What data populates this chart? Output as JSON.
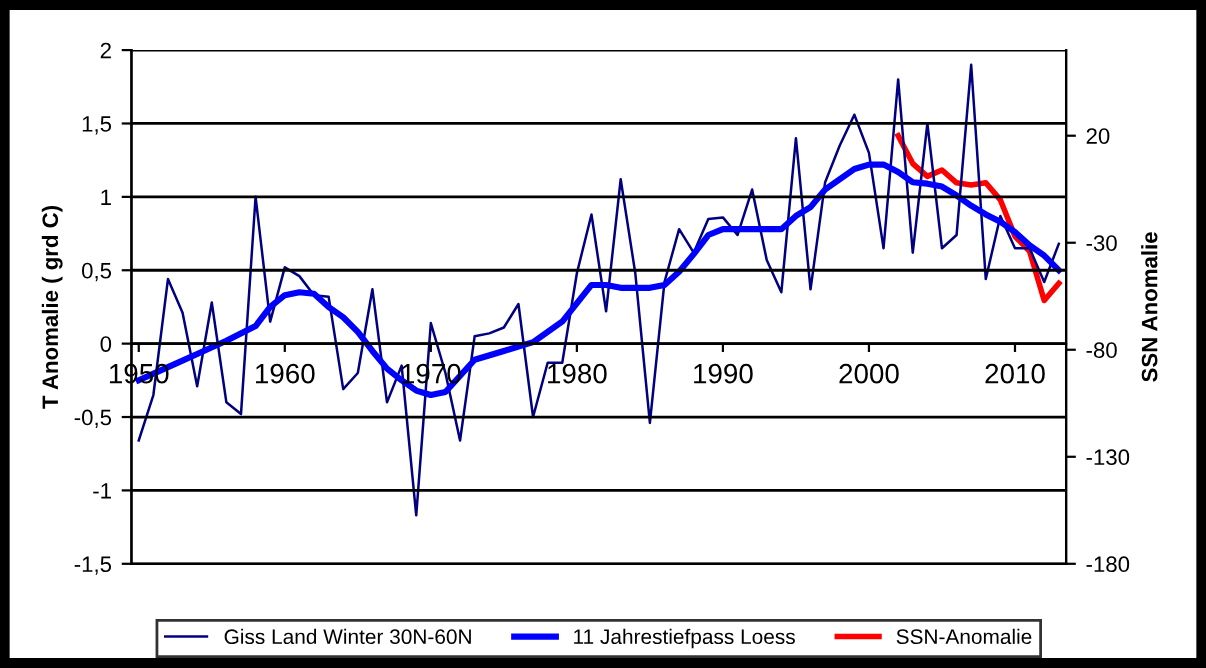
{
  "chart_data": {
    "type": "line",
    "ylabel": "T Anomalie ( grd C)",
    "y2label": "SSN Anomalie",
    "xlim": [
      1949.5,
      2013.5
    ],
    "xticks": [
      1950,
      1960,
      1970,
      1980,
      1990,
      2000,
      2010
    ],
    "ylim": [
      -1.5,
      2
    ],
    "yticks": [
      {
        "value": -1.5,
        "label": "-1,5"
      },
      -1,
      {
        "value": -0.5,
        "label": "-0,5"
      },
      0,
      {
        "value": 0.5,
        "label": "0,5"
      },
      1,
      {
        "value": 1.5,
        "label": "1,5"
      },
      2
    ],
    "y2lim": [
      -180,
      60
    ],
    "y2ticks": [
      -180,
      -130,
      -80,
      -30,
      20
    ],
    "grid": "y",
    "legend": "bottom",
    "marker": "none",
    "line_style": "solid",
    "series": [
      {
        "name": "Giss Land Winter 30N-60N",
        "color": "#000080",
        "x": [
          1950,
          1951,
          1952,
          1953,
          1954,
          1955,
          1956,
          1957,
          1958,
          1959,
          1960,
          1961,
          1962,
          1963,
          1964,
          1965,
          1966,
          1967,
          1968,
          1969,
          1970,
          1971,
          1972,
          1973,
          1974,
          1975,
          1976,
          1977,
          1978,
          1979,
          1980,
          1981,
          1982,
          1983,
          1984,
          1985,
          1986,
          1987,
          1988,
          1989,
          1990,
          1991,
          1992,
          1993,
          1994,
          1995,
          1996,
          1997,
          1998,
          1999,
          2000,
          2001,
          2002,
          2003,
          2004,
          2005,
          2006,
          2007,
          2008,
          2009,
          2010,
          2011,
          2012,
          2013
        ],
        "values": [
          -0.66,
          -0.35,
          0.44,
          0.21,
          -0.29,
          0.28,
          -0.4,
          -0.48,
          1.0,
          0.15,
          0.52,
          0.46,
          0.33,
          0.32,
          -0.31,
          -0.2,
          0.37,
          -0.4,
          -0.15,
          -1.17,
          0.14,
          -0.2,
          -0.66,
          0.05,
          0.07,
          0.11,
          0.27,
          -0.5,
          -0.13,
          -0.13,
          0.48,
          0.88,
          0.22,
          1.12,
          0.48,
          -0.54,
          0.42,
          0.78,
          0.62,
          0.85,
          0.86,
          0.74,
          1.05,
          0.57,
          0.35,
          1.4,
          0.37,
          1.1,
          1.35,
          1.56,
          1.3,
          0.65,
          1.8,
          0.62,
          1.5,
          0.65,
          0.74,
          1.9,
          0.44,
          0.87,
          0.65,
          0.65,
          0.42,
          0.68
        ]
      },
      {
        "name": "11 Jahrestiefpass Loess",
        "color": "#0000ff",
        "x": [
          1950,
          1952,
          1954,
          1956,
          1958,
          1959,
          1960,
          1961,
          1962,
          1963,
          1964,
          1965,
          1966,
          1967,
          1968,
          1969,
          1970,
          1971,
          1973,
          1975,
          1977,
          1979,
          1981,
          1982,
          1983,
          1984,
          1985,
          1986,
          1987,
          1988,
          1989,
          1990,
          1991,
          1992,
          1993,
          1994,
          1995,
          1996,
          1997,
          1998,
          1999,
          2000,
          2001,
          2002,
          2003,
          2004,
          2005,
          2006,
          2007,
          2008,
          2009,
          2010,
          2011,
          2012,
          2013
        ],
        "values": [
          -0.25,
          -0.16,
          -0.07,
          0.02,
          0.12,
          0.25,
          0.33,
          0.35,
          0.34,
          0.25,
          0.18,
          0.08,
          -0.05,
          -0.17,
          -0.25,
          -0.32,
          -0.35,
          -0.33,
          -0.11,
          -0.05,
          0.01,
          0.15,
          0.4,
          0.4,
          0.38,
          0.38,
          0.38,
          0.4,
          0.49,
          0.61,
          0.74,
          0.78,
          0.78,
          0.78,
          0.78,
          0.78,
          0.87,
          0.93,
          1.05,
          1.12,
          1.19,
          1.22,
          1.22,
          1.17,
          1.1,
          1.09,
          1.07,
          1.01,
          0.94,
          0.88,
          0.83,
          0.76,
          0.67,
          0.6,
          0.5
        ]
      },
      {
        "name": "SSN-Anomalie",
        "color": "#ff0000",
        "axis": "y2",
        "x": [
          2002,
          2003,
          2004,
          2005,
          2006,
          2007,
          2008,
          2009,
          2010,
          2011,
          2012,
          2013
        ],
        "values": [
          20,
          7,
          1,
          4,
          -2,
          -3,
          -2,
          -10,
          -27,
          -34,
          -57,
          -49
        ]
      }
    ]
  }
}
